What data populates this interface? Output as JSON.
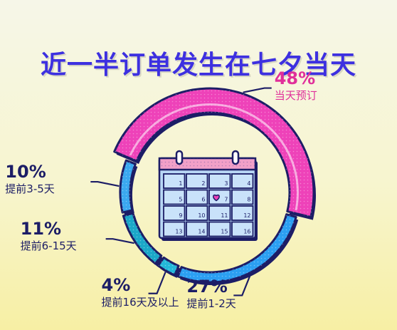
{
  "title": "近一半订单发生在七夕当天",
  "chart_data": {
    "type": "pie",
    "title": "近一半订单发生在七夕当天",
    "categories": [
      "当天预订",
      "提前1-2天",
      "提前16天及以上",
      "提前6-15天",
      "提前3-5天"
    ],
    "values": [
      48,
      27,
      4,
      11,
      10
    ],
    "value_labels": [
      "48%",
      "27%",
      "4%",
      "11%",
      "10%"
    ],
    "colors": [
      "#ee42b9",
      "#2b9ff2",
      "#23b8d9",
      "#1ba7c8",
      "#3aa8ef"
    ],
    "label_colors": [
      "#e0309a",
      "#1c1d66",
      "#1c1d66",
      "#1c1d66",
      "#1c1d66"
    ]
  },
  "calendar": {
    "days": [
      "1",
      "2",
      "3",
      "4",
      "5",
      "6",
      "7",
      "8",
      "9",
      "10",
      "11",
      "12",
      "13",
      "14",
      "15",
      "16"
    ],
    "heart_day": "7",
    "heart_icon": "heart-icon"
  }
}
